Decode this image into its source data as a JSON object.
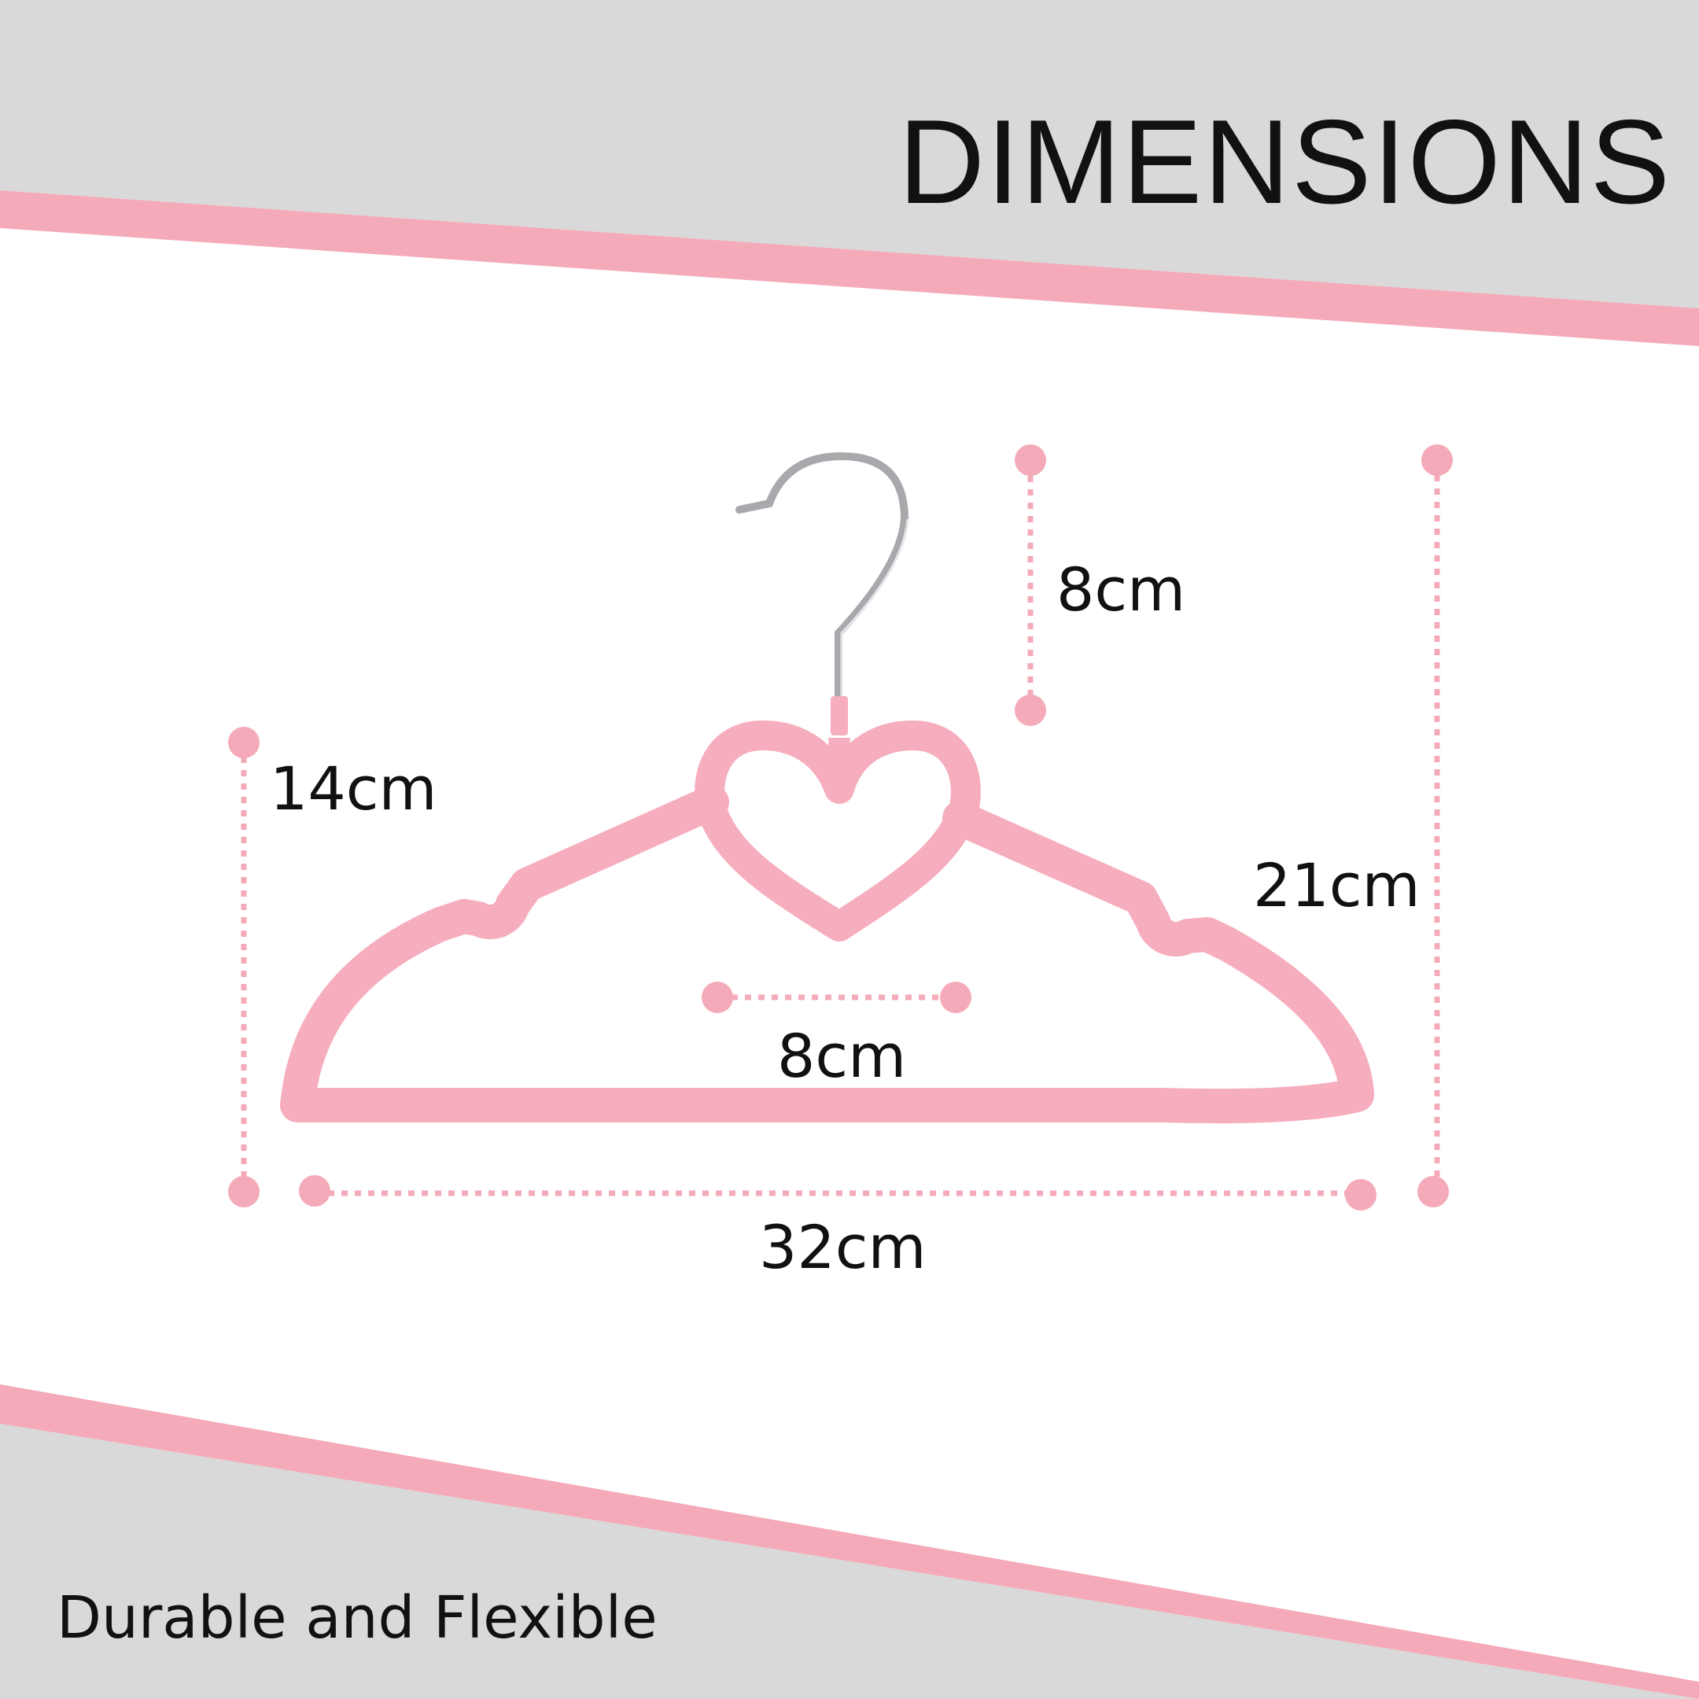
{
  "page": {
    "title": "DIMENSIONS",
    "tagline": "Durable and Flexible"
  },
  "dimensions": {
    "hook_height": "8cm",
    "hanger_height": "14cm",
    "total_height": "21cm",
    "heart_width": "8cm",
    "total_width": "32cm"
  },
  "colors": {
    "band_gray": "#d9d9d9",
    "accent_pink": "#f4aab8",
    "hanger_pink": "#f6adbd",
    "hook_silver": "#a7a9ad",
    "text": "#111111"
  }
}
